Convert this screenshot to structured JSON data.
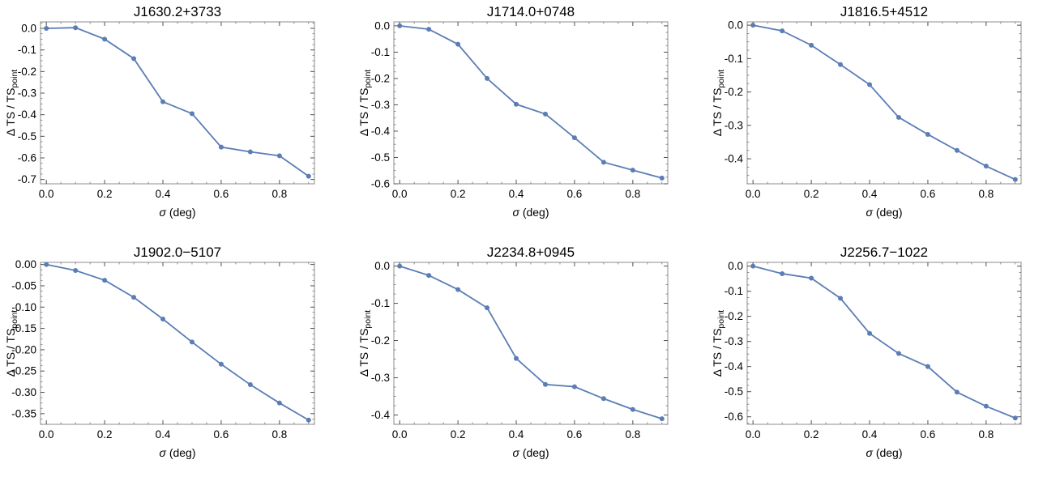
{
  "colors": {
    "series": "#5b7db5",
    "frame": "#8c8c8c"
  },
  "chart_data": [
    {
      "type": "line",
      "title": "J1630.2+3733",
      "xlabel": "σ (deg)",
      "ylabel_main": "Δ TS / TS",
      "ylabel_sub": "point",
      "xlim": [
        -0.02,
        0.92
      ],
      "ylim": [
        -0.72,
        0.03
      ],
      "xticks": [
        0.0,
        0.2,
        0.4,
        0.6,
        0.8
      ],
      "xtick_labels": [
        "0.0",
        "0.2",
        "0.4",
        "0.6",
        "0.8"
      ],
      "yticks": [
        0.0,
        -0.1,
        -0.2,
        -0.3,
        -0.4,
        -0.5,
        -0.6,
        -0.7
      ],
      "ytick_labels": [
        "0.0",
        "-0.1",
        "-0.2",
        "-0.3",
        "-0.4",
        "-0.5",
        "-0.6",
        "-0.7"
      ],
      "x": [
        0.0,
        0.1,
        0.2,
        0.3,
        0.4,
        0.5,
        0.6,
        0.7,
        0.8,
        0.9
      ],
      "values": [
        0.0,
        0.003,
        -0.05,
        -0.14,
        -0.34,
        -0.395,
        -0.55,
        -0.572,
        -0.59,
        -0.685
      ]
    },
    {
      "type": "line",
      "title": "J1714.0+0748",
      "xlabel": "σ (deg)",
      "ylabel_main": "Δ TS / TS",
      "ylabel_sub": "point",
      "xlim": [
        -0.02,
        0.92
      ],
      "ylim": [
        -0.6,
        0.015
      ],
      "xticks": [
        0.0,
        0.2,
        0.4,
        0.6,
        0.8
      ],
      "xtick_labels": [
        "0.0",
        "0.2",
        "0.4",
        "0.6",
        "0.8"
      ],
      "yticks": [
        0.0,
        -0.1,
        -0.2,
        -0.3,
        -0.4,
        -0.5,
        -0.6
      ],
      "ytick_labels": [
        "0.0",
        "-0.1",
        "-0.2",
        "-0.3",
        "-0.4",
        "-0.5",
        "-0.6"
      ],
      "x": [
        0.0,
        0.1,
        0.2,
        0.3,
        0.4,
        0.5,
        0.6,
        0.7,
        0.8,
        0.9
      ],
      "values": [
        0.0,
        -0.013,
        -0.07,
        -0.2,
        -0.298,
        -0.335,
        -0.425,
        -0.518,
        -0.548,
        -0.578
      ]
    },
    {
      "type": "line",
      "title": "J1816.5+4512",
      "xlabel": "σ (deg)",
      "ylabel_main": "Δ TS / TS",
      "ylabel_sub": "point",
      "xlim": [
        -0.02,
        0.92
      ],
      "ylim": [
        -0.475,
        0.01
      ],
      "xticks": [
        0.0,
        0.2,
        0.4,
        0.6,
        0.8
      ],
      "xtick_labels": [
        "0.0",
        "0.2",
        "0.4",
        "0.6",
        "0.8"
      ],
      "yticks": [
        0.0,
        -0.1,
        -0.2,
        -0.3,
        -0.4
      ],
      "ytick_labels": [
        "0.0",
        "-0.1",
        "-0.2",
        "-0.3",
        "-0.4"
      ],
      "x": [
        0.0,
        0.1,
        0.2,
        0.3,
        0.4,
        0.5,
        0.6,
        0.7,
        0.8,
        0.9
      ],
      "values": [
        0.0,
        -0.017,
        -0.06,
        -0.118,
        -0.178,
        -0.276,
        -0.327,
        -0.375,
        -0.422,
        -0.462
      ]
    },
    {
      "type": "line",
      "title": "J1902.0−5107",
      "xlabel": "σ (deg)",
      "ylabel_main": "Δ TS / TS",
      "ylabel_sub": "point",
      "xlim": [
        -0.02,
        0.92
      ],
      "ylim": [
        -0.375,
        0.005
      ],
      "xticks": [
        0.0,
        0.2,
        0.4,
        0.6,
        0.8
      ],
      "xtick_labels": [
        "0.0",
        "0.2",
        "0.4",
        "0.6",
        "0.8"
      ],
      "yticks": [
        0.0,
        -0.05,
        -0.1,
        -0.15,
        -0.2,
        -0.25,
        -0.3,
        -0.35
      ],
      "ytick_labels": [
        "0.00",
        "-0.05",
        "-0.10",
        "-0.15",
        "-0.20",
        "-0.25",
        "-0.30",
        "-0.35"
      ],
      "x": [
        0.0,
        0.1,
        0.2,
        0.3,
        0.4,
        0.5,
        0.6,
        0.7,
        0.8,
        0.9
      ],
      "values": [
        0.0,
        -0.014,
        -0.037,
        -0.077,
        -0.128,
        -0.182,
        -0.234,
        -0.282,
        -0.325,
        -0.365
      ]
    },
    {
      "type": "line",
      "title": "J2234.8+0945",
      "xlabel": "σ (deg)",
      "ylabel_main": "Δ TS / TS",
      "ylabel_sub": "point",
      "xlim": [
        -0.02,
        0.92
      ],
      "ylim": [
        -0.425,
        0.01
      ],
      "xticks": [
        0.0,
        0.2,
        0.4,
        0.6,
        0.8
      ],
      "xtick_labels": [
        "0.0",
        "0.2",
        "0.4",
        "0.6",
        "0.8"
      ],
      "yticks": [
        0.0,
        -0.1,
        -0.2,
        -0.3,
        -0.4
      ],
      "ytick_labels": [
        "0.0",
        "-0.1",
        "-0.2",
        "-0.3",
        "-0.4"
      ],
      "x": [
        0.0,
        0.1,
        0.2,
        0.3,
        0.4,
        0.5,
        0.6,
        0.7,
        0.8,
        0.9
      ],
      "values": [
        0.0,
        -0.025,
        -0.063,
        -0.112,
        -0.248,
        -0.318,
        -0.324,
        -0.356,
        -0.385,
        -0.41
      ]
    },
    {
      "type": "line",
      "title": "J2256.7−1022",
      "xlabel": "σ (deg)",
      "ylabel_main": "Δ TS / TS",
      "ylabel_sub": "point",
      "xlim": [
        -0.02,
        0.92
      ],
      "ylim": [
        -0.63,
        0.015
      ],
      "xticks": [
        0.0,
        0.2,
        0.4,
        0.6,
        0.8
      ],
      "xtick_labels": [
        "0.0",
        "0.2",
        "0.4",
        "0.6",
        "0.8"
      ],
      "yticks": [
        0.0,
        -0.1,
        -0.2,
        -0.3,
        -0.4,
        -0.5,
        -0.6
      ],
      "ytick_labels": [
        "0.0",
        "-0.1",
        "-0.2",
        "-0.3",
        "-0.4",
        "-0.5",
        "-0.6"
      ],
      "x": [
        0.0,
        0.1,
        0.2,
        0.3,
        0.4,
        0.5,
        0.6,
        0.7,
        0.8,
        0.9
      ],
      "values": [
        0.0,
        -0.03,
        -0.048,
        -0.128,
        -0.268,
        -0.348,
        -0.4,
        -0.502,
        -0.558,
        -0.605
      ]
    }
  ]
}
